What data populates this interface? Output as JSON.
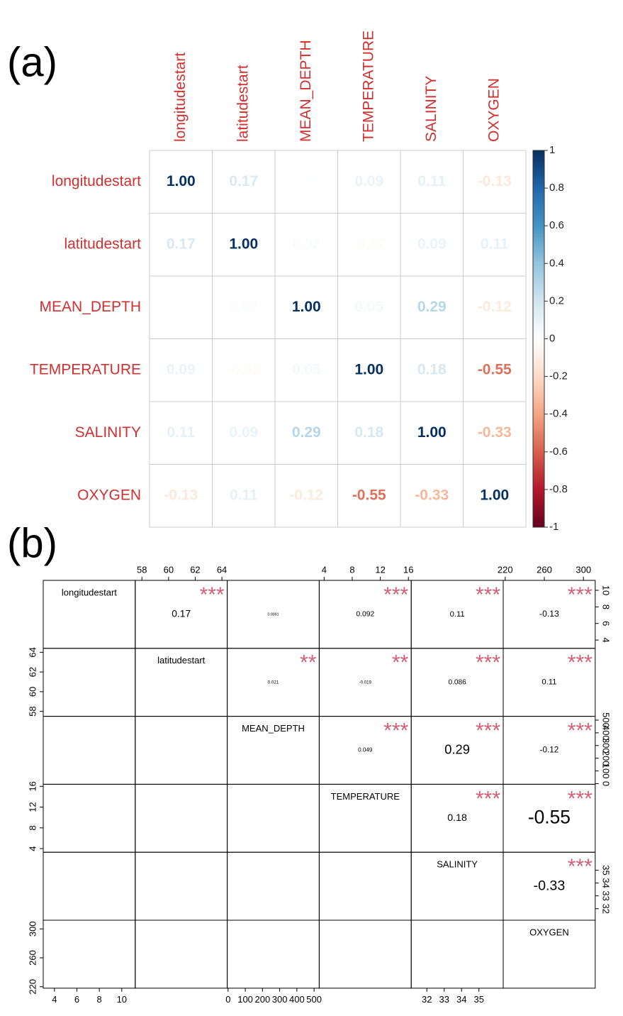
{
  "chart_data": [
    {
      "type": "heatmap",
      "panel_label": "(a)",
      "variables": [
        "longitudestart",
        "latitudestart",
        "MEAN_DEPTH",
        "TEMPERATURE",
        "SALINITY",
        "OXYGEN"
      ],
      "values": [
        [
          1,
          0.17,
          0.01,
          0.09,
          0.11,
          -0.13
        ],
        [
          0.17,
          1,
          0.02,
          -0.02,
          0.09,
          0.11
        ],
        [
          0.01,
          0.02,
          1,
          0.05,
          0.29,
          -0.12
        ],
        [
          0.09,
          -0.02,
          0.05,
          1,
          0.18,
          -0.55
        ],
        [
          0.11,
          0.09,
          0.29,
          0.18,
          1,
          -0.33
        ],
        [
          -0.13,
          0.11,
          -0.12,
          -0.55,
          -0.33,
          1
        ]
      ],
      "value_labels": [
        [
          "1.00",
          "0.17",
          "0.01",
          "0.09",
          "0.11",
          "-0.13"
        ],
        [
          "0.17",
          "1.00",
          "0.02",
          "-0.02",
          "0.09",
          "0.11"
        ],
        [
          "0.01",
          "0.02",
          "1.00",
          "0.05",
          "0.29",
          "-0.12"
        ],
        [
          "0.09",
          "-0.02",
          "0.05",
          "1.00",
          "0.18",
          "-0.55"
        ],
        [
          "0.11",
          "0.09",
          "0.29",
          "0.18",
          "1.00",
          "-0.33"
        ],
        [
          "-0.13",
          "0.11",
          "-0.12",
          "-0.55",
          "-0.33",
          "1.00"
        ]
      ],
      "colorbar_lim": [
        -1,
        1
      ],
      "colorbar_ticks": [
        1,
        0.8,
        0.6,
        0.4,
        0.2,
        0,
        -0.2,
        -0.4,
        -0.6,
        -0.8,
        -1
      ],
      "label_color": "#d03030"
    },
    {
      "type": "pairs",
      "panel_label": "(b)",
      "variables": [
        {
          "name": "longitudestart",
          "lim": [
            3,
            11.2
          ],
          "ticks": [
            4,
            6,
            8,
            10
          ]
        },
        {
          "name": "latitudestart",
          "lim": [
            57.5,
            64.4
          ],
          "ticks": [
            58,
            60,
            62,
            64
          ]
        },
        {
          "name": "MEAN_DEPTH",
          "lim": [
            -5,
            530
          ],
          "ticks": [
            0,
            100,
            200,
            300,
            400,
            500
          ]
        },
        {
          "name": "TEMPERATURE",
          "lim": [
            3.3,
            16.4
          ],
          "ticks": [
            4,
            8,
            12,
            16
          ]
        },
        {
          "name": "SALINITY",
          "lim": [
            31.1,
            36.4
          ],
          "ticks": [
            32,
            33,
            34,
            35
          ]
        },
        {
          "name": "OXYGEN",
          "lim": [
            218,
            312
          ],
          "ticks": [
            220,
            260,
            300
          ]
        }
      ],
      "correlations": [
        [
          0.17,
          0.0091,
          0.092,
          0.11,
          -0.13
        ],
        [
          0.021,
          -0.019,
          0.086,
          0.11
        ],
        [
          0.049,
          0.29,
          -0.12
        ],
        [
          0.18,
          -0.55
        ],
        [
          -0.33
        ]
      ],
      "stars": [
        [
          "***",
          null,
          "***",
          "***",
          "***"
        ],
        [
          "**",
          "**",
          "***",
          "***"
        ],
        [
          "***",
          "***",
          "***"
        ],
        [
          "***",
          "***"
        ],
        [
          "***"
        ]
      ],
      "star_color": "#d0607a"
    }
  ]
}
